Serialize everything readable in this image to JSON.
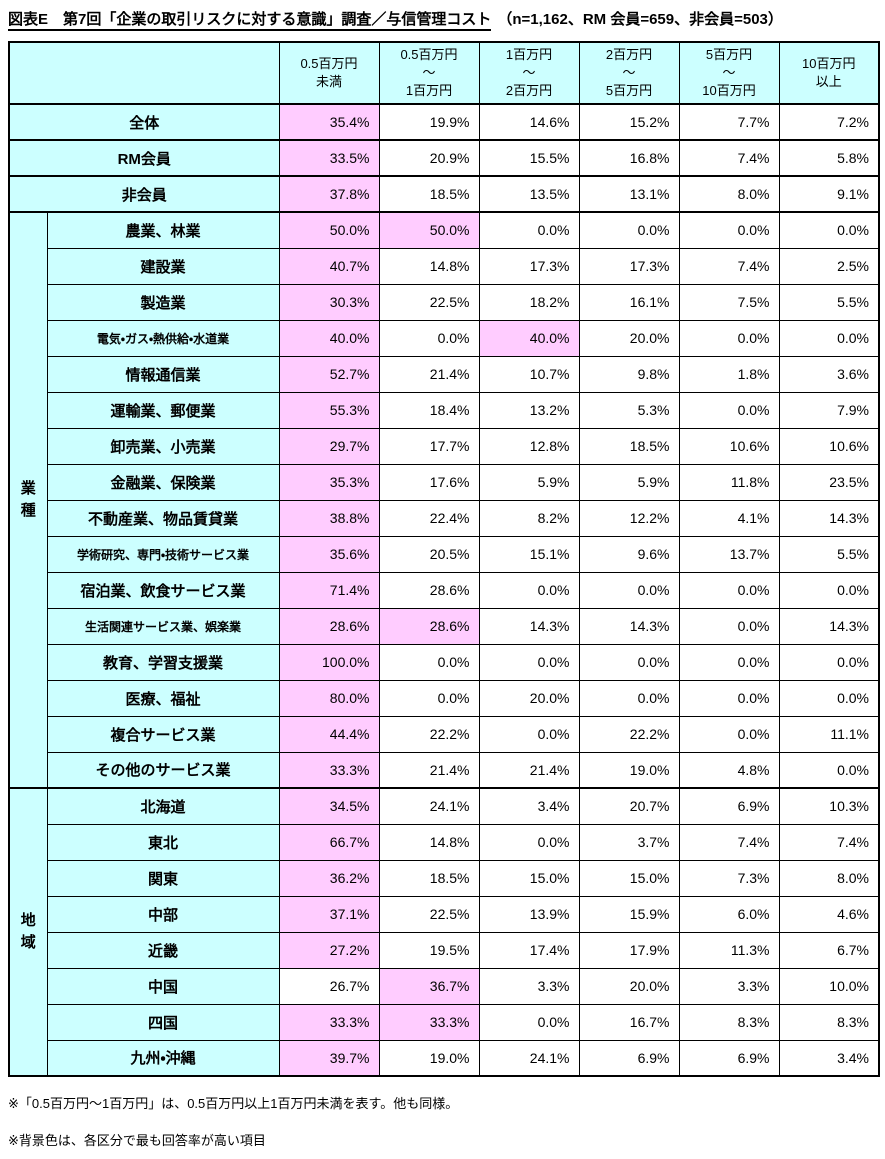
{
  "title": {
    "main": "図表E　第7回「企業の取引リスクに対する意識」調査／与信管理コスト",
    "sample": "（n=1,162、RM 会員=659、非会員=503）"
  },
  "table": {
    "header_color": "#ccffff",
    "highlight_color": "#ffccff",
    "column_headers": [
      "0.5百万円\n未満",
      "0.5百万円\n～\n1百万円",
      "1百万円\n～\n2百万円",
      "2百万円\n～\n5百万円",
      "5百万円\n～\n10百万円",
      "10百万円\n以上"
    ],
    "summary_rows": [
      {
        "label": "全体",
        "values": [
          "35.4%",
          "19.9%",
          "14.6%",
          "15.2%",
          "7.7%",
          "7.2%"
        ],
        "highlight": [
          0
        ]
      },
      {
        "label": "RM会員",
        "values": [
          "33.5%",
          "20.9%",
          "15.5%",
          "16.8%",
          "7.4%",
          "5.8%"
        ],
        "highlight": [
          0
        ]
      },
      {
        "label": "非会員",
        "values": [
          "37.8%",
          "18.5%",
          "13.5%",
          "13.1%",
          "8.0%",
          "9.1%"
        ],
        "highlight": [
          0
        ]
      }
    ],
    "groups": [
      {
        "label": "業種",
        "rows": [
          {
            "label": "農業、林業",
            "values": [
              "50.0%",
              "50.0%",
              "0.0%",
              "0.0%",
              "0.0%",
              "0.0%"
            ],
            "highlight": [
              0,
              1
            ]
          },
          {
            "label": "建設業",
            "values": [
              "40.7%",
              "14.8%",
              "17.3%",
              "17.3%",
              "7.4%",
              "2.5%"
            ],
            "highlight": [
              0
            ]
          },
          {
            "label": "製造業",
            "values": [
              "30.3%",
              "22.5%",
              "18.2%",
              "16.1%",
              "7.5%",
              "5.5%"
            ],
            "highlight": [
              0
            ]
          },
          {
            "label": "電気・ガス・熱供給・水道業",
            "values": [
              "40.0%",
              "0.0%",
              "40.0%",
              "20.0%",
              "0.0%",
              "0.0%"
            ],
            "highlight": [
              0,
              2
            ]
          },
          {
            "label": "情報通信業",
            "values": [
              "52.7%",
              "21.4%",
              "10.7%",
              "9.8%",
              "1.8%",
              "3.6%"
            ],
            "highlight": [
              0
            ]
          },
          {
            "label": "運輸業、郵便業",
            "values": [
              "55.3%",
              "18.4%",
              "13.2%",
              "5.3%",
              "0.0%",
              "7.9%"
            ],
            "highlight": [
              0
            ]
          },
          {
            "label": "卸売業、小売業",
            "values": [
              "29.7%",
              "17.7%",
              "12.8%",
              "18.5%",
              "10.6%",
              "10.6%"
            ],
            "highlight": [
              0
            ]
          },
          {
            "label": "金融業、保険業",
            "values": [
              "35.3%",
              "17.6%",
              "5.9%",
              "5.9%",
              "11.8%",
              "23.5%"
            ],
            "highlight": [
              0
            ]
          },
          {
            "label": "不動産業、物品賃貸業",
            "values": [
              "38.8%",
              "22.4%",
              "8.2%",
              "12.2%",
              "4.1%",
              "14.3%"
            ],
            "highlight": [
              0
            ]
          },
          {
            "label": "学術研究、専門・技術サービス業",
            "values": [
              "35.6%",
              "20.5%",
              "15.1%",
              "9.6%",
              "13.7%",
              "5.5%"
            ],
            "highlight": [
              0
            ]
          },
          {
            "label": "宿泊業、飲食サービス業",
            "values": [
              "71.4%",
              "28.6%",
              "0.0%",
              "0.0%",
              "0.0%",
              "0.0%"
            ],
            "highlight": [
              0
            ]
          },
          {
            "label": "生活関連サービス業、娯楽業",
            "values": [
              "28.6%",
              "28.6%",
              "14.3%",
              "14.3%",
              "0.0%",
              "14.3%"
            ],
            "highlight": [
              0,
              1
            ]
          },
          {
            "label": "教育、学習支援業",
            "values": [
              "100.0%",
              "0.0%",
              "0.0%",
              "0.0%",
              "0.0%",
              "0.0%"
            ],
            "highlight": [
              0
            ]
          },
          {
            "label": "医療、福祉",
            "values": [
              "80.0%",
              "0.0%",
              "20.0%",
              "0.0%",
              "0.0%",
              "0.0%"
            ],
            "highlight": [
              0
            ]
          },
          {
            "label": "複合サービス業",
            "values": [
              "44.4%",
              "22.2%",
              "0.0%",
              "22.2%",
              "0.0%",
              "11.1%"
            ],
            "highlight": [
              0
            ]
          },
          {
            "label": "その他のサービス業",
            "values": [
              "33.3%",
              "21.4%",
              "21.4%",
              "19.0%",
              "4.8%",
              "0.0%"
            ],
            "highlight": [
              0
            ]
          }
        ]
      },
      {
        "label": "地域",
        "rows": [
          {
            "label": "北海道",
            "values": [
              "34.5%",
              "24.1%",
              "3.4%",
              "20.7%",
              "6.9%",
              "10.3%"
            ],
            "highlight": [
              0
            ]
          },
          {
            "label": "東北",
            "values": [
              "66.7%",
              "14.8%",
              "0.0%",
              "3.7%",
              "7.4%",
              "7.4%"
            ],
            "highlight": [
              0
            ]
          },
          {
            "label": "関東",
            "values": [
              "36.2%",
              "18.5%",
              "15.0%",
              "15.0%",
              "7.3%",
              "8.0%"
            ],
            "highlight": [
              0
            ]
          },
          {
            "label": "中部",
            "values": [
              "37.1%",
              "22.5%",
              "13.9%",
              "15.9%",
              "6.0%",
              "4.6%"
            ],
            "highlight": [
              0
            ]
          },
          {
            "label": "近畿",
            "values": [
              "27.2%",
              "19.5%",
              "17.4%",
              "17.9%",
              "11.3%",
              "6.7%"
            ],
            "highlight": [
              0
            ]
          },
          {
            "label": "中国",
            "values": [
              "26.7%",
              "36.7%",
              "3.3%",
              "20.0%",
              "3.3%",
              "10.0%"
            ],
            "highlight": [
              1
            ]
          },
          {
            "label": "四国",
            "values": [
              "33.3%",
              "33.3%",
              "0.0%",
              "16.7%",
              "8.3%",
              "8.3%"
            ],
            "highlight": [
              0,
              1
            ]
          },
          {
            "label": "九州・沖縄",
            "values": [
              "39.7%",
              "19.0%",
              "24.1%",
              "6.9%",
              "6.9%",
              "3.4%"
            ],
            "highlight": [
              0
            ]
          }
        ]
      }
    ]
  },
  "notes": [
    "※「0.5百万円～1百万円」は、0.5百万円以上1百万円未満を表す。他も同様。",
    "※背景色は、各区分で最も回答率が高い項目"
  ]
}
